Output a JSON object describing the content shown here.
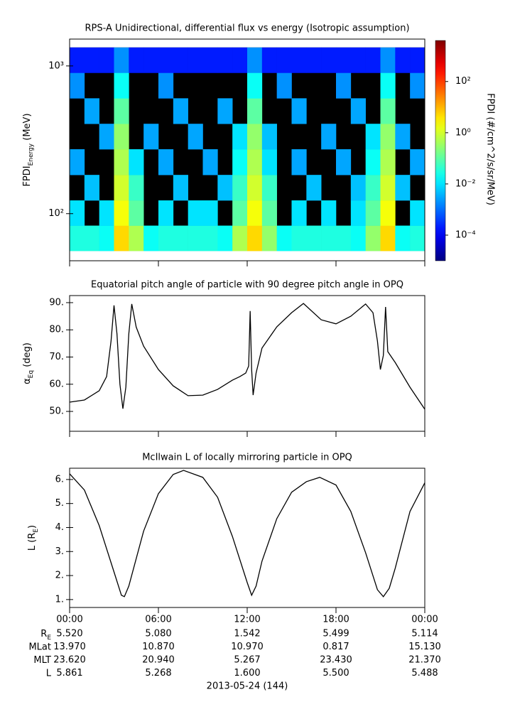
{
  "chart_data": [
    {
      "type": "spectrogram",
      "title": "RPS-A Unidirectional, differential flux vs energy (Isotropic assumption)",
      "ylabel": {
        "text": "FPDI",
        "sub": "Energy",
        "after": " (MeV)"
      },
      "colorbar_label": "FPDI (#/cm^2/s/sr/MeV)",
      "xlim": [
        0,
        24
      ],
      "xticks": [
        0,
        6,
        12,
        18,
        24
      ],
      "ylim": [
        48,
        1520
      ],
      "ylog": true,
      "yticks": [
        {
          "value": 100,
          "label": "10²"
        },
        {
          "value": 1000,
          "label": "10³"
        }
      ],
      "zlim": [
        1e-05,
        4000
      ],
      "zlog": true,
      "zticks": [
        {
          "value": 0.0001,
          "label": "10⁻⁴"
        },
        {
          "value": 0.01,
          "label": "10⁻²"
        },
        {
          "value": 1,
          "label": "10⁰"
        },
        {
          "value": 100,
          "label": "10²"
        }
      ],
      "time_bins": [
        0,
        1,
        2,
        3,
        4,
        5,
        6,
        7,
        8,
        9,
        10,
        11,
        12,
        13,
        14,
        15,
        16,
        17,
        18,
        19,
        20,
        21,
        22,
        23,
        24
      ],
      "energy_bins": [
        56,
        83,
        123,
        183,
        273,
        406,
        604,
        899,
        1334
      ],
      "values": [
        [
          0.03,
          0.03,
          0.02,
          5,
          0.5,
          0.02,
          0.03,
          0.03,
          0.03,
          0.03,
          0.02,
          0.5,
          5,
          0.3,
          0.02,
          0.03,
          0.03,
          0.03,
          0.03,
          0.02,
          0.3,
          5,
          0.02,
          0.03
        ],
        [
          0.01,
          null,
          0.01,
          2,
          0.1,
          null,
          0.01,
          null,
          0.01,
          0.01,
          null,
          0.1,
          2,
          0.1,
          null,
          0.01,
          null,
          0.01,
          null,
          0.01,
          0.1,
          2,
          null,
          0.01
        ],
        [
          null,
          0.005,
          null,
          1,
          0.05,
          null,
          null,
          0.005,
          null,
          null,
          0.005,
          0.05,
          1,
          0.05,
          null,
          null,
          0.005,
          null,
          null,
          0.005,
          0.05,
          1,
          0.005,
          null
        ],
        [
          0.003,
          null,
          null,
          0.5,
          0.01,
          null,
          0.003,
          null,
          null,
          0.003,
          null,
          0.02,
          0.5,
          0.01,
          null,
          0.003,
          null,
          null,
          0.003,
          null,
          0.02,
          0.5,
          null,
          0.003
        ],
        [
          null,
          null,
          0.003,
          0.3,
          null,
          0.003,
          null,
          null,
          0.003,
          null,
          null,
          0.01,
          0.3,
          0.005,
          null,
          null,
          null,
          0.003,
          null,
          null,
          0.01,
          0.3,
          0.003,
          null
        ],
        [
          null,
          0.003,
          null,
          0.1,
          null,
          null,
          null,
          0.003,
          null,
          null,
          0.003,
          null,
          0.1,
          null,
          null,
          0.003,
          null,
          null,
          null,
          0.003,
          null,
          0.1,
          null,
          null
        ],
        [
          0.002,
          null,
          null,
          0.02,
          null,
          null,
          0.002,
          null,
          null,
          null,
          null,
          null,
          0.02,
          null,
          0.002,
          null,
          null,
          null,
          0.002,
          null,
          null,
          0.02,
          null,
          0.002
        ],
        [
          0.0002,
          0.0002,
          0.0002,
          0.002,
          0.0002,
          0.0002,
          0.0002,
          0.0002,
          0.0002,
          0.0002,
          0.0002,
          0.0002,
          0.002,
          0.0002,
          0.0002,
          0.0002,
          0.0002,
          0.0002,
          0.0002,
          0.0002,
          0.0002,
          0.002,
          0.0002,
          0.0002
        ]
      ]
    },
    {
      "type": "line",
      "title": "Equatorial pitch angle of particle with 90 degree pitch angle in OPQ",
      "ylabel": {
        "text": "α",
        "sub": "Eq",
        "after": " (deg)"
      },
      "xlim": [
        0,
        24
      ],
      "xticks": [
        0,
        6,
        12,
        18,
        24
      ],
      "ylim": [
        42.7,
        92.6
      ],
      "yticks": [
        {
          "value": 50,
          "label": "50."
        },
        {
          "value": 60,
          "label": "60."
        },
        {
          "value": 70,
          "label": "70."
        },
        {
          "value": 80,
          "label": "80."
        },
        {
          "value": 90,
          "label": "90."
        }
      ],
      "color": "#000000",
      "x": [
        0,
        1,
        2,
        2.5,
        2.8,
        3.0,
        3.2,
        3.4,
        3.6,
        3.8,
        4.0,
        4.2,
        4.5,
        5,
        6,
        7,
        8,
        9,
        10,
        11,
        11.5,
        11.9,
        12.1,
        12.2,
        12.3,
        12.4,
        12.6,
        13,
        14,
        15,
        15.8,
        17,
        18,
        19,
        20,
        20.5,
        20.8,
        21.0,
        21.2,
        21.35,
        21.5,
        22,
        23,
        24
      ],
      "values": [
        53.4,
        54.2,
        57.6,
        62.8,
        75.9,
        89,
        78.5,
        60,
        51,
        58.9,
        78.5,
        89.5,
        81,
        74,
        65.4,
        59.4,
        55.8,
        56,
        58.1,
        61.5,
        62.8,
        64.1,
        66.7,
        86.9,
        65.4,
        56,
        64.1,
        73.3,
        81.1,
        86.3,
        89.7,
        83.7,
        82.2,
        85,
        89.5,
        86.3,
        75.9,
        65.4,
        70.6,
        88.4,
        72,
        68,
        58.9,
        50.8
      ]
    },
    {
      "type": "line",
      "title": "McIlwain L of locally mirroring particle in OPQ",
      "ylabel": {
        "text": "L (R",
        "sub": "E",
        "after": ")"
      },
      "xlim": [
        0,
        24
      ],
      "xticks": [
        {
          "value": 0,
          "label": "00:00"
        },
        {
          "value": 6,
          "label": "06:00"
        },
        {
          "value": 12,
          "label": "12:00"
        },
        {
          "value": 18,
          "label": "18:00"
        },
        {
          "value": 24,
          "label": "00:00"
        }
      ],
      "ylim": [
        0.67,
        6.47
      ],
      "yticks": [
        {
          "value": 1,
          "label": "1."
        },
        {
          "value": 2,
          "label": "2."
        },
        {
          "value": 3,
          "label": "3."
        },
        {
          "value": 4,
          "label": "4."
        },
        {
          "value": 5,
          "label": "5."
        },
        {
          "value": 6,
          "label": "6."
        }
      ],
      "color": "#000000",
      "x": [
        0,
        1,
        2,
        3,
        3.5,
        3.7,
        4,
        5,
        6,
        7,
        7.7,
        9,
        10,
        11,
        12,
        12.3,
        12.6,
        13,
        14,
        15,
        16,
        16.9,
        18,
        19,
        20,
        20.8,
        21.2,
        21.6,
        22,
        23,
        24
      ],
      "values": [
        6.24,
        5.56,
        4.08,
        2.15,
        1.18,
        1.12,
        1.56,
        3.85,
        5.41,
        6.21,
        6.38,
        6.09,
        5.26,
        3.63,
        1.71,
        1.18,
        1.56,
        2.6,
        4.37,
        5.47,
        5.91,
        6.09,
        5.77,
        4.67,
        2.95,
        1.41,
        1.12,
        1.47,
        2.3,
        4.67,
        5.86
      ]
    }
  ],
  "ephemeris": {
    "row_labels": [
      {
        "text": "R",
        "sub": "E"
      },
      {
        "text": "MLat"
      },
      {
        "text": "MLT"
      },
      {
        "text": "L"
      }
    ],
    "rows": [
      [
        "5.520",
        "5.080",
        "1.542",
        "5.499",
        "5.114"
      ],
      [
        "13.970",
        "10.870",
        "10.970",
        "0.817",
        "15.130"
      ],
      [
        "23.620",
        "20.940",
        "5.267",
        "23.430",
        "21.370"
      ],
      [
        "5.861",
        "5.268",
        "1.600",
        "5.500",
        "5.488"
      ]
    ],
    "date": "2013-05-24 (144)"
  }
}
